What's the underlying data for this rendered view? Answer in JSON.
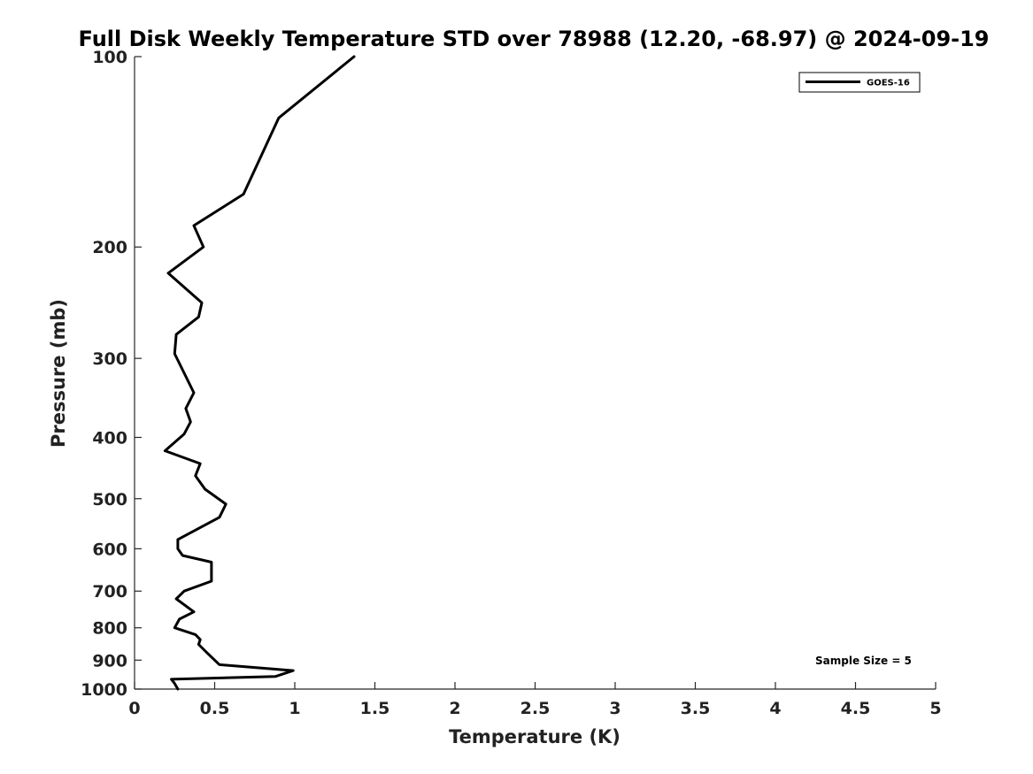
{
  "chart_data": {
    "type": "line",
    "title": "Full Disk Weekly Temperature STD over 78988 (12.20, -68.97) @ 2024-09-19",
    "xlabel": "Temperature (K)",
    "ylabel": "Pressure (mb)",
    "xlim": [
      0,
      5
    ],
    "ylim": [
      100,
      1000
    ],
    "y_scale": "log",
    "y_inverted": true,
    "x_ticks": [
      0,
      0.5,
      1,
      1.5,
      2,
      2.5,
      3,
      3.5,
      4,
      4.5,
      5
    ],
    "x_tick_labels": [
      "0",
      "0.5",
      "1",
      "1.5",
      "2",
      "2.5",
      "3",
      "3.5",
      "4",
      "4.5",
      "5"
    ],
    "y_ticks": [
      100,
      200,
      300,
      400,
      500,
      600,
      700,
      800,
      900,
      1000
    ],
    "y_tick_labels": [
      "100",
      "200",
      "300",
      "400",
      "500",
      "600",
      "700",
      "800",
      "900",
      "1000"
    ],
    "grid": false,
    "legend_position": "top-right",
    "annotation": "Sample Size = 5",
    "color": "#000000",
    "series": [
      {
        "name": "GOES-16",
        "x": [
          1.37,
          0.9,
          0.68,
          0.37,
          0.43,
          0.21,
          0.42,
          0.4,
          0.26,
          0.25,
          0.37,
          0.32,
          0.35,
          0.31,
          0.19,
          0.41,
          0.38,
          0.44,
          0.57,
          0.53,
          0.27,
          0.27,
          0.3,
          0.48,
          0.48,
          0.31,
          0.26,
          0.37,
          0.28,
          0.25,
          0.38,
          0.41,
          0.4,
          0.45,
          0.48,
          0.53,
          0.99,
          0.88,
          0.23,
          0.25,
          0.27
        ],
        "y": [
          100,
          125,
          165,
          185,
          200,
          220,
          245,
          258,
          275,
          295,
          340,
          360,
          378,
          395,
          420,
          440,
          460,
          483,
          510,
          535,
          580,
          600,
          615,
          630,
          675,
          700,
          720,
          755,
          775,
          800,
          820,
          835,
          850,
          875,
          890,
          915,
          935,
          955,
          965,
          980,
          1000
        ]
      }
    ]
  }
}
